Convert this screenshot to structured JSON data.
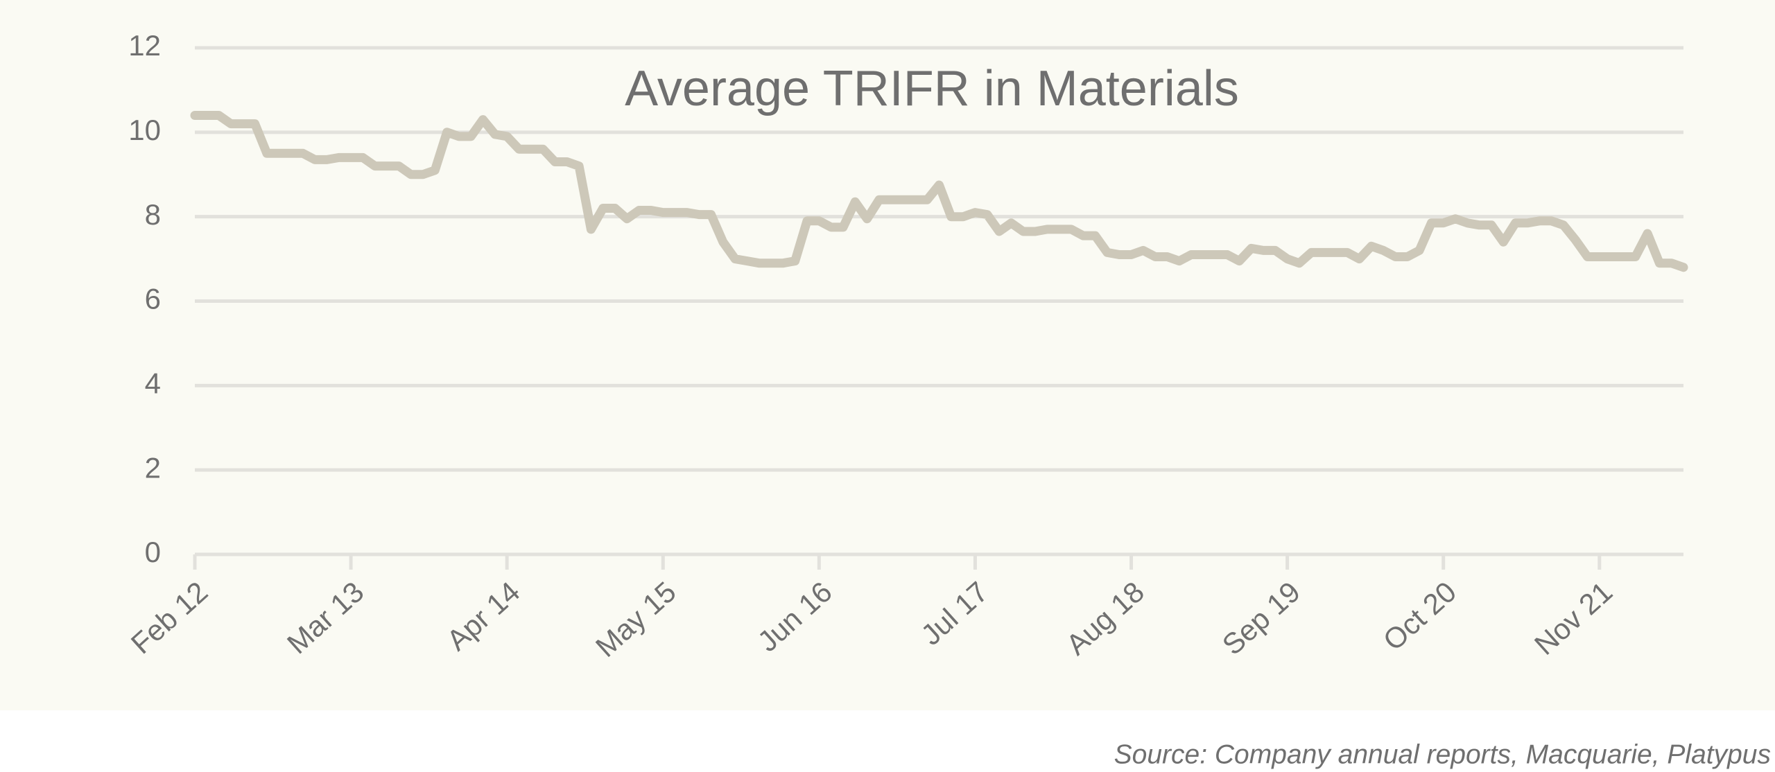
{
  "chart_data": {
    "type": "line",
    "title": "Average TRIFR in Materials",
    "source": "Source: Company annual reports, Macquarie, Platypus",
    "categories": [
      "Feb 12",
      null,
      null,
      null,
      null,
      null,
      null,
      null,
      null,
      null,
      null,
      null,
      null,
      "Mar 13",
      null,
      null,
      null,
      null,
      null,
      null,
      null,
      null,
      null,
      null,
      null,
      null,
      "Apr 14",
      null,
      null,
      null,
      null,
      null,
      null,
      null,
      null,
      null,
      null,
      null,
      null,
      "May 15",
      null,
      null,
      null,
      null,
      null,
      null,
      null,
      null,
      null,
      null,
      null,
      null,
      "Jun 16",
      null,
      null,
      null,
      null,
      null,
      null,
      null,
      null,
      null,
      null,
      null,
      null,
      "Jul 17",
      null,
      null,
      null,
      null,
      null,
      null,
      null,
      null,
      null,
      null,
      null,
      null,
      "Aug 18",
      null,
      null,
      null,
      null,
      null,
      null,
      null,
      null,
      null,
      null,
      null,
      null,
      "Sep 19",
      null,
      null,
      null,
      null,
      null,
      null,
      null,
      null,
      null,
      null,
      null,
      null,
      "Oct 20",
      null,
      null,
      null,
      null,
      null,
      null,
      null,
      null,
      null,
      null,
      null,
      null,
      "Nov 21",
      null,
      null,
      null,
      null,
      null,
      null,
      null
    ],
    "values": [
      10.4,
      10.4,
      10.4,
      10.2,
      10.2,
      10.2,
      9.5,
      9.5,
      9.5,
      9.5,
      9.35,
      9.35,
      9.4,
      9.4,
      9.4,
      9.2,
      9.2,
      9.2,
      9.0,
      9.0,
      9.1,
      10.0,
      9.9,
      9.9,
      10.3,
      9.95,
      9.9,
      9.6,
      9.6,
      9.6,
      9.3,
      9.3,
      9.2,
      7.7,
      8.2,
      8.2,
      7.95,
      8.15,
      8.15,
      8.1,
      8.1,
      8.1,
      8.05,
      8.05,
      7.4,
      7.0,
      6.95,
      6.9,
      6.9,
      6.9,
      6.95,
      7.9,
      7.9,
      7.75,
      7.75,
      8.35,
      7.95,
      8.4,
      8.4,
      8.4,
      8.4,
      8.4,
      8.75,
      8.0,
      8.0,
      8.1,
      8.05,
      7.65,
      7.85,
      7.65,
      7.65,
      7.7,
      7.7,
      7.7,
      7.55,
      7.55,
      7.15,
      7.1,
      7.1,
      7.2,
      7.05,
      7.05,
      6.95,
      7.1,
      7.1,
      7.1,
      7.1,
      6.95,
      7.25,
      7.2,
      7.2,
      7.0,
      6.9,
      7.15,
      7.15,
      7.15,
      7.15,
      7.0,
      7.3,
      7.2,
      7.05,
      7.05,
      7.2,
      7.85,
      7.85,
      7.95,
      7.85,
      7.8,
      7.8,
      7.4,
      7.85,
      7.85,
      7.9,
      7.9,
      7.8,
      7.45,
      7.05,
      7.05,
      7.05,
      7.05,
      7.05,
      7.6,
      6.9,
      6.9,
      6.8
    ],
    "color": "#cdc8b9",
    "ylim": [
      0,
      12
    ],
    "yticks": [
      0,
      2,
      4,
      6,
      8,
      10,
      12
    ],
    "grid": true
  }
}
